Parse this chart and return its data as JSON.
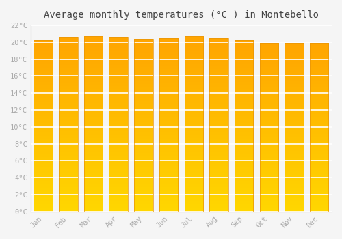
{
  "title": "Average monthly temperatures (°C ) in Montebello",
  "months": [
    "Jan",
    "Feb",
    "Mar",
    "Apr",
    "May",
    "Jun",
    "Jul",
    "Aug",
    "Sep",
    "Oct",
    "Nov",
    "Dec"
  ],
  "values": [
    20.2,
    20.6,
    20.7,
    20.6,
    20.4,
    20.5,
    20.7,
    20.5,
    20.2,
    19.9,
    19.9,
    19.9
  ],
  "bar_color_top": "#FFA500",
  "bar_color_bottom": "#FFD700",
  "bar_edge_color": "#E8940A",
  "ylim": [
    0,
    22
  ],
  "yticks": [
    0,
    2,
    4,
    6,
    8,
    10,
    12,
    14,
    16,
    18,
    20,
    22
  ],
  "ytick_labels": [
    "0°C",
    "2°C",
    "4°C",
    "6°C",
    "8°C",
    "10°C",
    "12°C",
    "14°C",
    "16°C",
    "18°C",
    "20°C",
    "22°C"
  ],
  "background_color": "#f5f5f5",
  "grid_color": "#ffffff",
  "title_fontsize": 10,
  "tick_fontsize": 7.5,
  "tick_color": "#aaaaaa",
  "font_family": "monospace",
  "bar_width": 0.75
}
